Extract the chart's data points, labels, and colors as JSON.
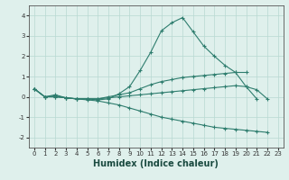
{
  "xlabel": "Humidex (Indice chaleur)",
  "x_values": [
    0,
    1,
    2,
    3,
    4,
    5,
    6,
    7,
    8,
    9,
    10,
    11,
    12,
    13,
    14,
    15,
    16,
    17,
    18,
    19,
    20,
    21,
    22,
    23
  ],
  "lines": [
    [
      0.4,
      0.0,
      0.1,
      -0.05,
      -0.1,
      -0.1,
      -0.15,
      -0.1,
      0.15,
      0.5,
      1.3,
      2.2,
      3.25,
      3.65,
      3.9,
      3.2,
      2.5,
      2.0,
      1.55,
      1.2,
      0.5,
      -0.1,
      null,
      null
    ],
    [
      0.4,
      0.0,
      0.05,
      -0.05,
      -0.1,
      -0.1,
      -0.1,
      0.0,
      0.1,
      0.2,
      0.4,
      0.6,
      0.75,
      0.85,
      0.95,
      1.0,
      1.05,
      1.1,
      1.15,
      1.2,
      1.2,
      null,
      null,
      null
    ],
    [
      0.4,
      0.0,
      0.0,
      -0.05,
      -0.1,
      -0.1,
      -0.1,
      -0.05,
      0.0,
      0.05,
      0.1,
      0.15,
      0.2,
      0.25,
      0.3,
      0.35,
      0.4,
      0.45,
      0.5,
      0.55,
      0.5,
      0.35,
      -0.1,
      null
    ],
    [
      0.4,
      0.0,
      0.0,
      -0.05,
      -0.1,
      -0.15,
      -0.2,
      -0.3,
      -0.4,
      -0.55,
      -0.7,
      -0.85,
      -1.0,
      -1.1,
      -1.2,
      -1.3,
      -1.4,
      -1.5,
      -1.55,
      -1.6,
      -1.65,
      -1.7,
      -1.75,
      null
    ]
  ],
  "line_color": "#2e7d6e",
  "bg_color": "#dff0ec",
  "grid_color": "#b8d8d2",
  "ylim": [
    -2.5,
    4.5
  ],
  "xlim": [
    -0.5,
    23.5
  ],
  "yticks": [
    -2,
    -1,
    0,
    1,
    2,
    3,
    4
  ],
  "xtick_fontsize": 5.0,
  "ytick_fontsize": 6.0,
  "xlabel_fontsize": 7.0
}
